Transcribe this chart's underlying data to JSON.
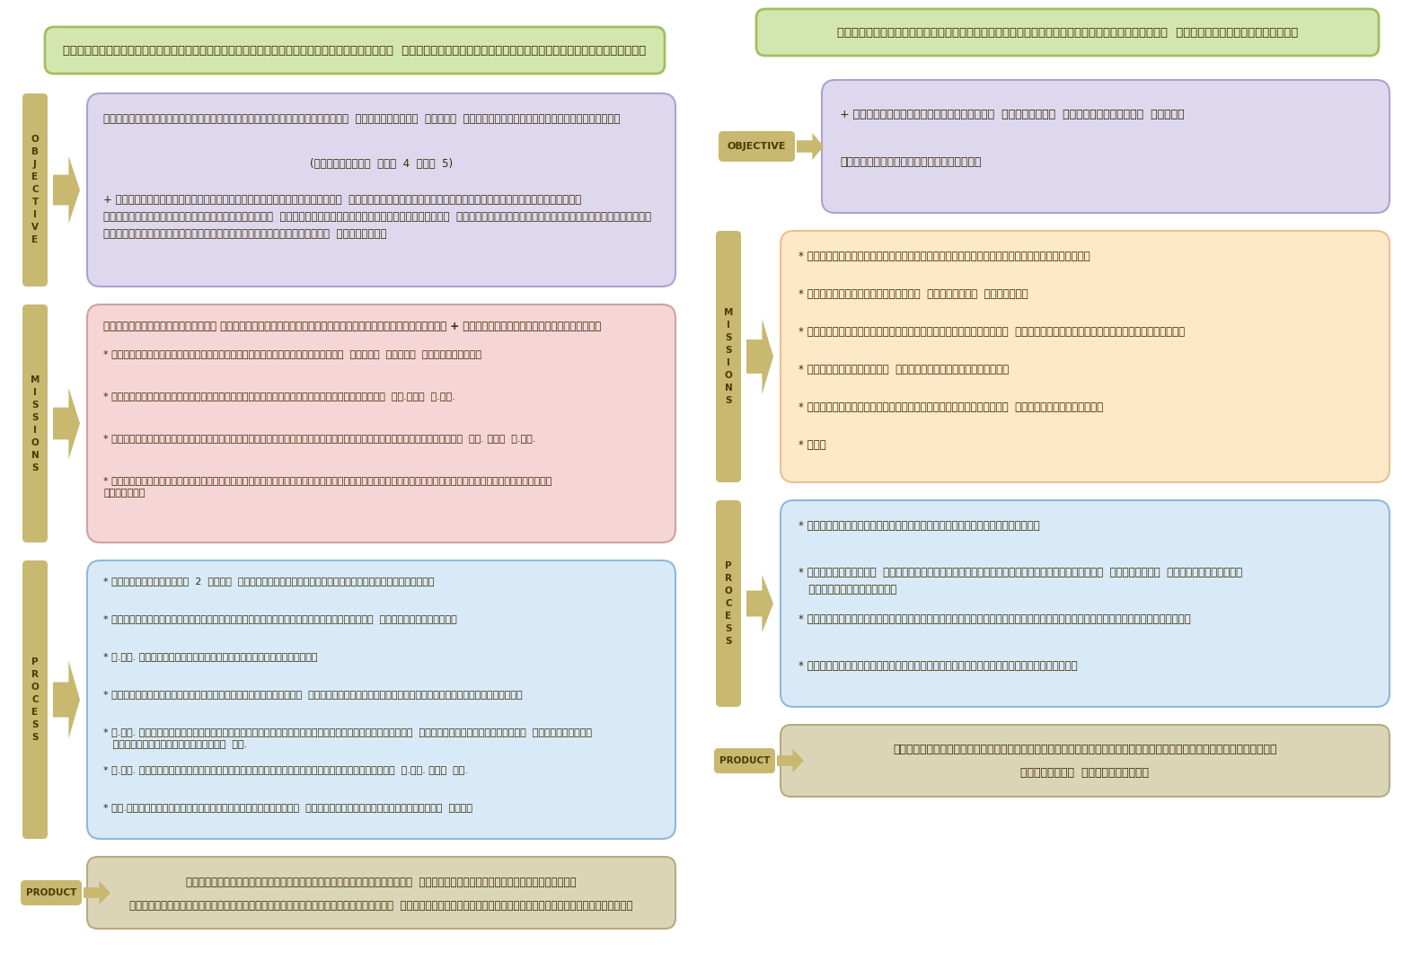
{
  "background_color": "#ffffff",
  "left_panel": {
    "title": "ยุทธศาสตร์สมาคมนิสิตเก่ามหาวิทยาลัยเกษตรศาสตร์  ด้านมหาวิทยาลัยเกษตรศาสตร์สัมพันธ์",
    "title_bg": "#d4e6b0",
    "title_border": "#a0c060",
    "objective_label": "O\nB\nJ\nE\nC\nT\nI\nV\nE",
    "objective_box_bg": "#ddd8ee",
    "objective_box_border": "#b0a0d0",
    "objective_text_1": "ส่งเสริมสนับสนุนการศึกษาเผยแพร่วิทยาการ  การค้นคว้า  วิจัย  และเกียรติแห่งสถาบันศึกษา",
    "objective_text_2": "(ข้อบังคับ  ข้อ  4  และ  5)",
    "objective_text_3": "+ สมาคมนิสิตเก่ามหาวิทยาลัยเกษตรศาสตร์  และมหาวิทยาลัยเกษตรศาสตร์มีการร่วมมือ\nระหว่างกันในการดำเนินการใดๆ  เพื่อช่วยเหลือนิสิตปัจจุบัน  นิสิตเก่ามหาวิทยาลัยเกษตรศาสตร์\nสมาคมนิสิตเก่ามหาวิทยาลัยเกษตรศาสตร์  และสังคม",
    "mission_label": "M\nI\nS\nS\nI\nO\nN\nS",
    "mission_box_bg": "#f5d5d5",
    "mission_box_border": "#d0a0a0",
    "mission_title": "ความร่วมมือระหว่าง สมาคมนิสิตเก่ามหาวิทยาลัยเกษตรศาสตร์ + มหาวิทยาลัยเกษตรศาสตร์",
    "mission_items": [
      "* มีกิจกรรมที่ก่อให้เกิดประโยชน์ต่อสถาบัน  นิสิต  สังคม  และประชาชน",
      "* มีกิจกรรมที่ก่อให้เกิดความสัมพันธ์อันดีระหว่าง  มก.และ  ส.มก.",
      "* สนับสนุนช่วยเหลือซึ่งกันและกันในการสร้างผลงานและเกียรติแห่ง  มก. และ  ส.มก.",
      "* มีความร่วมมือกันในการสร้างคุณค่าให้กับหน่วยงานในการพัฒนาความรู้แก่นักศึกษา\nประชาชน"
    ],
    "process_label": "P\nR\nO\nC\nE\nS\nS",
    "process_box_bg": "#d8eaf8",
    "process_box_border": "#90b8d8",
    "process_items": [
      "* จัดประชุมร่วม  2  ฝ่าย  เพื่อดำเนินการให้เป็นไปตามพันธกิจ",
      "* ร่วมกันจัดกิจกรรมที่เป็นประโยชน์ต่อนิสิตเก่า  นิสิตปัจจุบัน",
      "* ส.มก. มอบทุนการศึกษาแก่นิสิตปัจจุบัน",
      "* นิสิตเก่าให้คำแนะนำนิสิตปัจจุบัน  แนวทางการประกอบอาชีพให้ประสบผลสำเร็จ",
      "* ส.มก. จัดให้นิสิตเก่าที่มีความสำเร็จในการประกอบอาชีพ  ถ่ายทอดความรู้เชิง  ประสบการณ์\n   แก่นิสิตตามหลักสูตร  มก.",
      "* ส.มก. จัดให้มีการจำหน่ายสินค้าราคาถูกในรูปตลาดนัด  ส.มก. ที่  มก.",
      "* มก.จัดหลักสูตรพัฒนาความรู้สมาชิก  ตามความประสงค์ของสมาชิก  ชมรม"
    ],
    "product_label": "PRODUCT",
    "product_box_bg": "#dbd5b8",
    "product_box_border": "#b8aa80",
    "product_text_1": "สมาคมนิสิตเก่ามหาวิทยาลัยเกษตรศาสตร์  และมหาวิทยาลัยเกษตรศาสตร์",
    "product_text_2": "เป็นองค์กรที่มีคุณค่าเป็นเกียรติแห่งสถาบัน  โดยการสร้างประโยชน์แก่สังคมและประชาชน"
  },
  "right_panel": {
    "title": "ยุทธศาสตร์สมาคมนิสิตเก่ามหาวิทยาลัยเกษตรศาสตร์  ด้านสังคมสัมพันธ์",
    "title_bg": "#d4e6b0",
    "title_border": "#a0c060",
    "objective_label": "OBJECTIVE",
    "objective_box_bg": "#ddd8ee",
    "objective_box_border": "#b0a0d0",
    "objective_text_1": "+ มีบทบาทในการช่วยเหลือ  เกื้อกูล  พัฒนาประชาชน  สังคม",
    "objective_text_2": "ด้วยกิจกรรมเชิงคุณค่า",
    "mission_label": "M\nI\nS\nS\nI\nO\nN\nS",
    "mission_box_bg": "#fde8c8",
    "mission_box_border": "#e8c090",
    "mission_items": [
      "* ส่งเสริมให้ความร่วมมือกิจกรรมทางศาสนาและสังคม",
      "* ให้ความรู้แก่นิสิต  นักศึกษา  ประชาชน",
      "* จัดจำหน่ายสินค้าราคาถูกของสมาชิก  เพื่อลดรายจ่ายให้กับประชาชน",
      "* บริจาคสิ่งของ  สินค้าแก่ผู้ยากไร้",
      "* ร่วมกิจกรรมที่เป็นการบรรเทาทุกข์  แก่ผู้ประสบภัย",
      "* ฯลฯ"
    ],
    "process_label": "P\nR\nO\nC\nE\nS\nS",
    "process_box_bg": "#d8eaf8",
    "process_box_border": "#90b8d8",
    "process_items": [
      "* จัดให้มีกิจกรรมเพื่อทำนุบำรุงต่อศาสนา",
      "* จัดให้มีทุน  เพื่อการช่วยเหลือประชาชนผู้ประสบภัย  ผู้พิการ  ผู้ด้อยโอกาส\n   หรือสถานพยาบาล",
      "* จัดคาดเคลื่อนที่ขายสินค้าของสมาชิกแก่ประชาชนในแหล่งชุมชนต่างๆ",
      "* จัดให้มีการพัฒนากิจการประกอบอาชีพแก่ประชาชน"
    ],
    "product_label": "PRODUCT",
    "product_box_bg": "#dbd5b8",
    "product_box_border": "#b8aa80",
    "product_text_1": "สมาคมนิสิตเก่ามหาวิทยาลัยเกษตรศาสตร์มีคุณค่าสร้างประโยชน์",
    "product_text_2": "แก่สังคม  และประชาชน"
  },
  "label_bg": "#c8b870",
  "label_border": "#a09050",
  "label_text_color": "#4a3a00",
  "arrow_color": "#c8b870",
  "text_color": "#3a2800"
}
